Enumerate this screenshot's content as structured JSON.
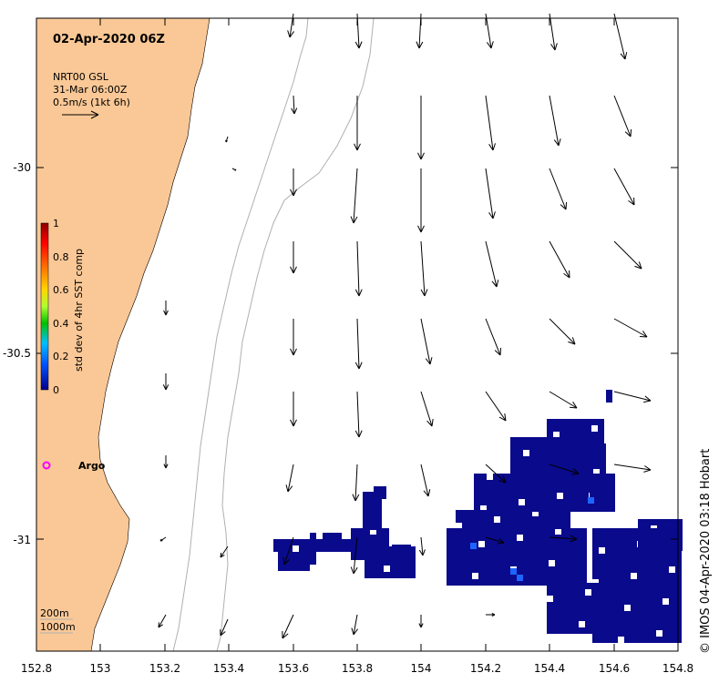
{
  "title": "02-Apr-2020 06Z",
  "info": {
    "line1": "NRT00 GSL",
    "line2": "31-Mar 06:00Z",
    "line3": "0.5m/s (1kt 6h)"
  },
  "colorbar": {
    "label": "std dev of 4hr SST comp",
    "ticks": [
      "1",
      "0.8",
      "0.6",
      "0.4",
      "0.2",
      "0"
    ],
    "colors": [
      "#8b0000",
      "#ff0000",
      "#ff8c00",
      "#ffd700",
      "#adff2f",
      "#00c000",
      "#00bfff",
      "#0050ff",
      "#00008b"
    ]
  },
  "argo_label": "Argo",
  "depth_legend": {
    "line1": "200m",
    "line2": "1000m"
  },
  "credit": "© IMOS 04-Apr-2020 03:18 Hobart",
  "x_ticks": [
    "152.8",
    "153",
    "153.2",
    "153.4",
    "153.6",
    "153.8",
    "154",
    "154.2",
    "154.4",
    "154.6",
    "154.8"
  ],
  "y_ticks": [
    "-30",
    "-30.5",
    "-31"
  ],
  "colors": {
    "land": "#fac896",
    "sst_patch": "#0a0a8c",
    "sst_bright": "#1e64ff",
    "argo": "#ff00ff",
    "isobath": "#b0b0b0"
  }
}
